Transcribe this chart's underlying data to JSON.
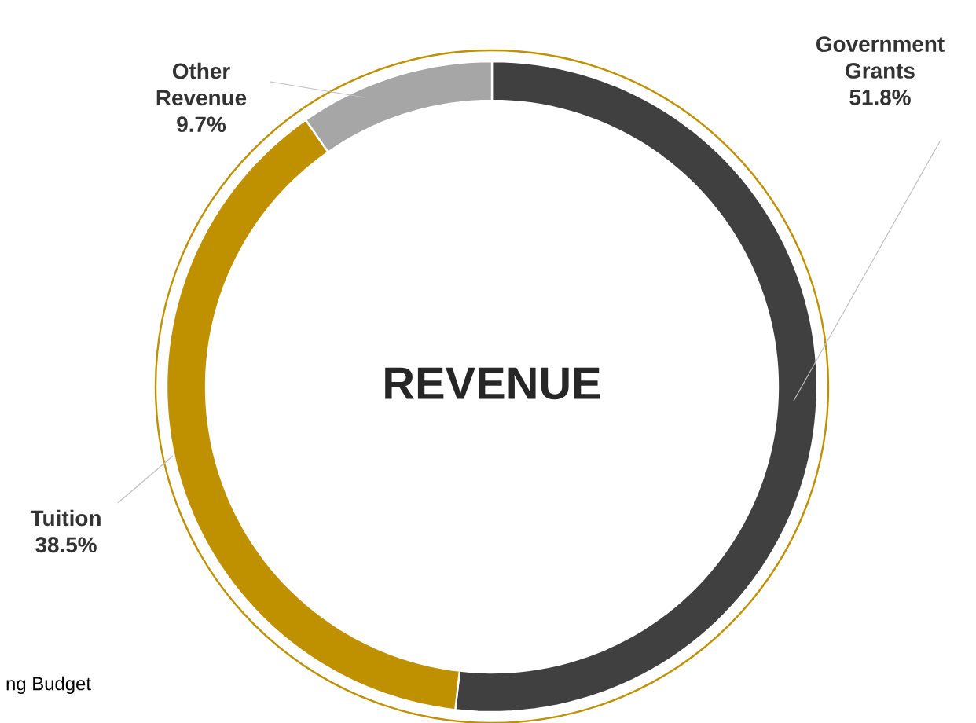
{
  "chart_data": {
    "type": "donut",
    "title": "REVENUE",
    "categories": [
      "Government Grants",
      "Tuition",
      "Other Revenue"
    ],
    "values": [
      51.8,
      38.5,
      9.7
    ],
    "value_labels": [
      "51.8%",
      "38.5%",
      "9.7%"
    ],
    "colors": [
      "#404040",
      "#bf9000",
      "#a6a6a6"
    ],
    "annotations": [
      "ng Budget"
    ]
  }
}
